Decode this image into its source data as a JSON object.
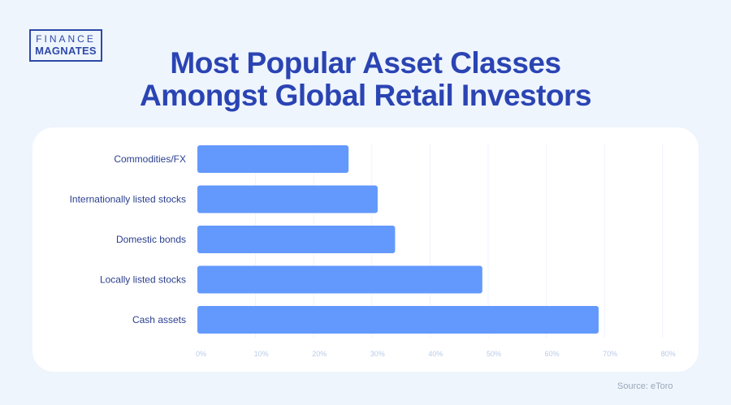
{
  "logo": {
    "line1": "FINANCE",
    "line2": "MAGNATES"
  },
  "title_line1": "Most Popular Asset Classes",
  "title_line2": "Amongst Global Retail Investors",
  "source": "Source: eToro",
  "colors": {
    "bar": "#6399fd",
    "title": "#2b44b3",
    "background": "#eef5fd",
    "grid": "#eef3fb"
  },
  "chart_data": {
    "type": "bar",
    "orientation": "horizontal",
    "categories": [
      "Commodities/FX",
      "Internationally listed stocks",
      "Domestic bonds",
      "Locally listed stocks",
      "Cash assets"
    ],
    "values": [
      26,
      31,
      34,
      49,
      69
    ],
    "xlim": [
      0,
      80
    ],
    "xticks": [
      "0%",
      "10%",
      "20%",
      "30%",
      "40%",
      "50%",
      "60%",
      "70%",
      "80%"
    ],
    "unit": "%",
    "grid": true
  }
}
